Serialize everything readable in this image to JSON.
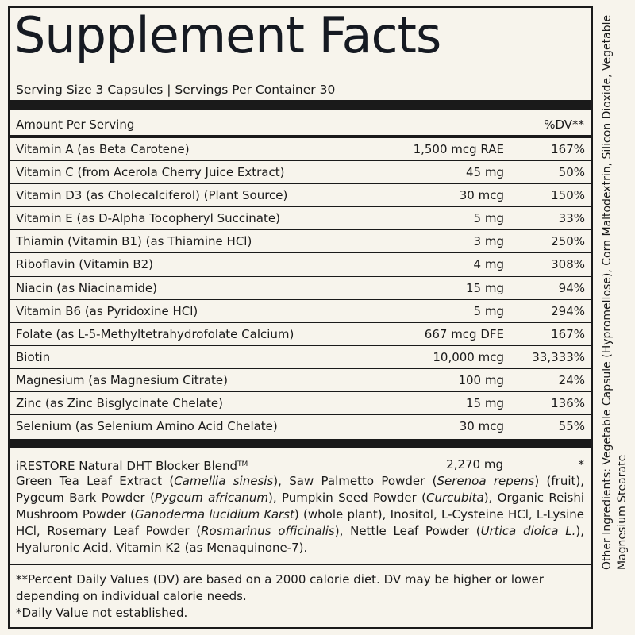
{
  "title": "Supplement Facts",
  "serving_line": "Serving Size 3 Capsules | Servings Per Container 30",
  "header": {
    "amount_label": "Amount Per Serving",
    "dv_label": "%DV**"
  },
  "rows": [
    {
      "name": "Vitamin A (as Beta Carotene)",
      "amount": "1,500 mcg RAE",
      "dv": "167%"
    },
    {
      "name": "Vitamin C (from Acerola Cherry Juice Extract)",
      "amount": "45 mg",
      "dv": "50%"
    },
    {
      "name": "Vitamin D3 (as Cholecalciferol) (Plant Source)",
      "amount": "30 mcg",
      "dv": "150%"
    },
    {
      "name": "Vitamin E (as D-Alpha Tocopheryl Succinate)",
      "amount": "5 mg",
      "dv": "33%"
    },
    {
      "name": "Thiamin (Vitamin B1) (as Thiamine HCl)",
      "amount": "3 mg",
      "dv": "250%"
    },
    {
      "name": "Riboflavin (Vitamin B2)",
      "amount": "4 mg",
      "dv": "308%"
    },
    {
      "name": "Niacin (as Niacinamide)",
      "amount": "15 mg",
      "dv": "94%"
    },
    {
      "name": "Vitamin B6 (as Pyridoxine HCl)",
      "amount": "5 mg",
      "dv": "294%"
    },
    {
      "name": "Folate (as L-5-Methyltetrahydrofolate Calcium)",
      "amount": "667 mcg DFE",
      "dv": "167%"
    },
    {
      "name": "Biotin",
      "amount": "10,000 mcg",
      "dv": "33,333%"
    },
    {
      "name": "Magnesium (as Magnesium Citrate)",
      "amount": "100 mg",
      "dv": "24%"
    },
    {
      "name": "Zinc (as Zinc Bisglycinate Chelate)",
      "amount": "15 mg",
      "dv": "136%"
    },
    {
      "name": "Selenium (as Selenium Amino Acid Chelate)",
      "amount": "30 mcg",
      "dv": "55%"
    }
  ],
  "blend": {
    "name": "iRESTORE Natural DHT Blocker Blend",
    "tm": "TM",
    "amount": "2,270 mg",
    "dv": "*",
    "ingredients": [
      {
        "text": "Green Tea Leaf Extract ("
      },
      {
        "text": "Camellia sinesis",
        "italic": true
      },
      {
        "text": "), Saw Palmetto Powder ("
      },
      {
        "text": "Serenoa repens",
        "italic": true
      },
      {
        "text": ") (fruit), Pygeum Bark Powder ("
      },
      {
        "text": "Pygeum africanum",
        "italic": true
      },
      {
        "text": "), Pumpkin Seed Powder ("
      },
      {
        "text": "Curcubita",
        "italic": true
      },
      {
        "text": "), Organic Reishi Mushroom Powder ("
      },
      {
        "text": "Ganoderma lucidium Karst",
        "italic": true
      },
      {
        "text": ") (whole plant), Inositol, L-Cysteine HCl, L-Lysine HCl, Rosemary Leaf Powder ("
      },
      {
        "text": "Rosmarinus officinalis",
        "italic": true
      },
      {
        "text": "), Nettle Leaf Powder ("
      },
      {
        "text": "Urtica dioica L.",
        "italic": true
      },
      {
        "text": "), Hyaluronic Acid, Vitamin K2 (as Menaquinone-7)."
      }
    ]
  },
  "footnotes": {
    "dv_note": "**Percent Daily Values (DV) are based on a 2000 calorie diet. DV may be higher or lower depending on individual calorie needs.",
    "star_note": "*Daily Value not established."
  },
  "other_ingredients": "Other Ingredients: Vegetable Capsule (Hypromellose), Corn Maltodextrin, Silicon Dioxide, Vegetable Magnesium Stearate"
}
